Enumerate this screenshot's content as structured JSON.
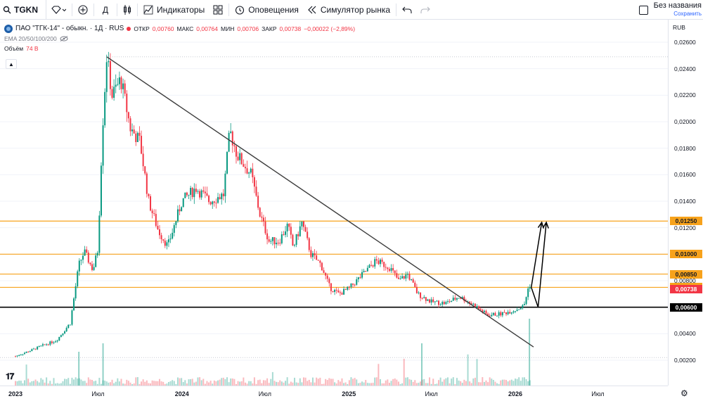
{
  "toolbar": {
    "symbol": "TGKN",
    "interval": "Д",
    "indicators_label": "Индикаторы",
    "alerts_label": "Оповещения",
    "replay_label": "Симулятор рынка",
    "layout_name": "Без названия",
    "save_label": "Сохранить"
  },
  "legend": {
    "title": "ПАО \"ТГК-14\" - обыкн. · 1Д · RUS",
    "open_label": "ОТКР",
    "open_value": "0,00760",
    "high_label": "МАКС",
    "high_value": "0,00764",
    "low_label": "МИН",
    "low_value": "0,00706",
    "close_label": "ЗАКР",
    "close_value": "0,00738",
    "change": "−0,00022 (−2,89%)",
    "ema_label": "EMA 20/50/100/200",
    "volume_label": "Объём",
    "volume_value": "74 B"
  },
  "price_axis": {
    "currency": "RUB",
    "ticks": [
      "0,02600",
      "0,02400",
      "0,02200",
      "0,02000",
      "0,01800",
      "0,01600",
      "0,01400",
      "0,01200",
      "0,01000",
      "0,00800",
      "0,00600",
      "0,00400",
      "0,00200"
    ],
    "level_labels": [
      "0,01250",
      "0,01000",
      "0,00850",
      "0,00750",
      "0,00600"
    ],
    "last_price_label": "0,00738"
  },
  "time_axis": {
    "labels": [
      "2023",
      "Июл",
      "2024",
      "Июл",
      "2025",
      "Июл",
      "2026",
      "Июл"
    ]
  },
  "colors": {
    "up": "#089981",
    "down": "#f23645",
    "level": "#f7a21b",
    "support": "#000000",
    "trendline": "#3c3c3c"
  },
  "chart_data": {
    "type": "candlestick",
    "symbol": "TGKN",
    "interval": "1D",
    "y_range": [
      0.0,
      0.0265
    ],
    "x_range": [
      "2022-12-20",
      "2026-09-01"
    ],
    "price_scale": "linear",
    "legend_position": "top-left",
    "ohlc_last": {
      "open": 0.0076,
      "high": 0.00764,
      "low": 0.00706,
      "close": 0.00738
    },
    "horizontal_levels": [
      {
        "price": 0.0125,
        "color": "#f7a21b"
      },
      {
        "price": 0.01,
        "color": "#f7a21b"
      },
      {
        "price": 0.0085,
        "color": "#f7a21b"
      },
      {
        "price": 0.0075,
        "color": "#f7a21b"
      },
      {
        "price": 0.006,
        "color": "#000000"
      }
    ],
    "trendline": {
      "start": [
        "2023-07-20",
        0.0249
      ],
      "end": [
        "2026-02-10",
        0.003
      ]
    },
    "projection_arrows": [
      {
        "from": [
          "2026-02-05",
          0.0075
        ],
        "to": [
          "2026-02-20",
          0.006
        ]
      },
      {
        "from": [
          "2026-02-20",
          0.006
        ],
        "to": [
          "2026-03-10",
          0.0124
        ]
      },
      {
        "from": [
          "2026-02-05",
          0.0075
        ],
        "to": [
          "2026-02-28",
          0.0124
        ]
      }
    ],
    "price_path": [
      [
        "2023-01-01",
        0.0023
      ],
      [
        "2023-02-01",
        0.0027
      ],
      [
        "2023-03-01",
        0.0031
      ],
      [
        "2023-04-01",
        0.0035
      ],
      [
        "2023-05-01",
        0.0048
      ],
      [
        "2023-05-20",
        0.0092
      ],
      [
        "2023-06-01",
        0.0102
      ],
      [
        "2023-06-20",
        0.0088
      ],
      [
        "2023-07-01",
        0.0104
      ],
      [
        "2023-07-10",
        0.019
      ],
      [
        "2023-07-20",
        0.0249
      ],
      [
        "2023-08-01",
        0.022
      ],
      [
        "2023-08-20",
        0.0232
      ],
      [
        "2023-09-10",
        0.0195
      ],
      [
        "2023-10-01",
        0.0185
      ],
      [
        "2023-10-20",
        0.014
      ],
      [
        "2023-11-10",
        0.0118
      ],
      [
        "2023-12-01",
        0.0106
      ],
      [
        "2024-01-01",
        0.014
      ],
      [
        "2024-02-01",
        0.015
      ],
      [
        "2024-03-01",
        0.014
      ],
      [
        "2024-04-01",
        0.0145
      ],
      [
        "2024-04-15",
        0.0193
      ],
      [
        "2024-05-01",
        0.0175
      ],
      [
        "2024-06-01",
        0.016
      ],
      [
        "2024-06-20",
        0.013
      ],
      [
        "2024-07-10",
        0.011
      ],
      [
        "2024-08-01",
        0.011
      ],
      [
        "2024-08-20",
        0.0122
      ],
      [
        "2024-09-01",
        0.0105
      ],
      [
        "2024-09-20",
        0.0124
      ],
      [
        "2024-10-10",
        0.01
      ],
      [
        "2024-11-01",
        0.0092
      ],
      [
        "2024-11-20",
        0.0075
      ],
      [
        "2024-12-10",
        0.007
      ],
      [
        "2025-01-01",
        0.0074
      ],
      [
        "2025-02-01",
        0.0085
      ],
      [
        "2025-03-01",
        0.0095
      ],
      [
        "2025-04-01",
        0.009
      ],
      [
        "2025-04-20",
        0.008
      ],
      [
        "2025-05-10",
        0.0085
      ],
      [
        "2025-06-01",
        0.007
      ],
      [
        "2025-07-01",
        0.0064
      ],
      [
        "2025-08-01",
        0.0063
      ],
      [
        "2025-09-01",
        0.0068
      ],
      [
        "2025-10-01",
        0.0062
      ],
      [
        "2025-11-01",
        0.0054
      ],
      [
        "2025-12-01",
        0.0055
      ],
      [
        "2026-01-01",
        0.0058
      ],
      [
        "2026-01-20",
        0.0061
      ],
      [
        "2026-02-01",
        0.0078
      ],
      [
        "2026-02-05",
        0.0074
      ]
    ]
  }
}
